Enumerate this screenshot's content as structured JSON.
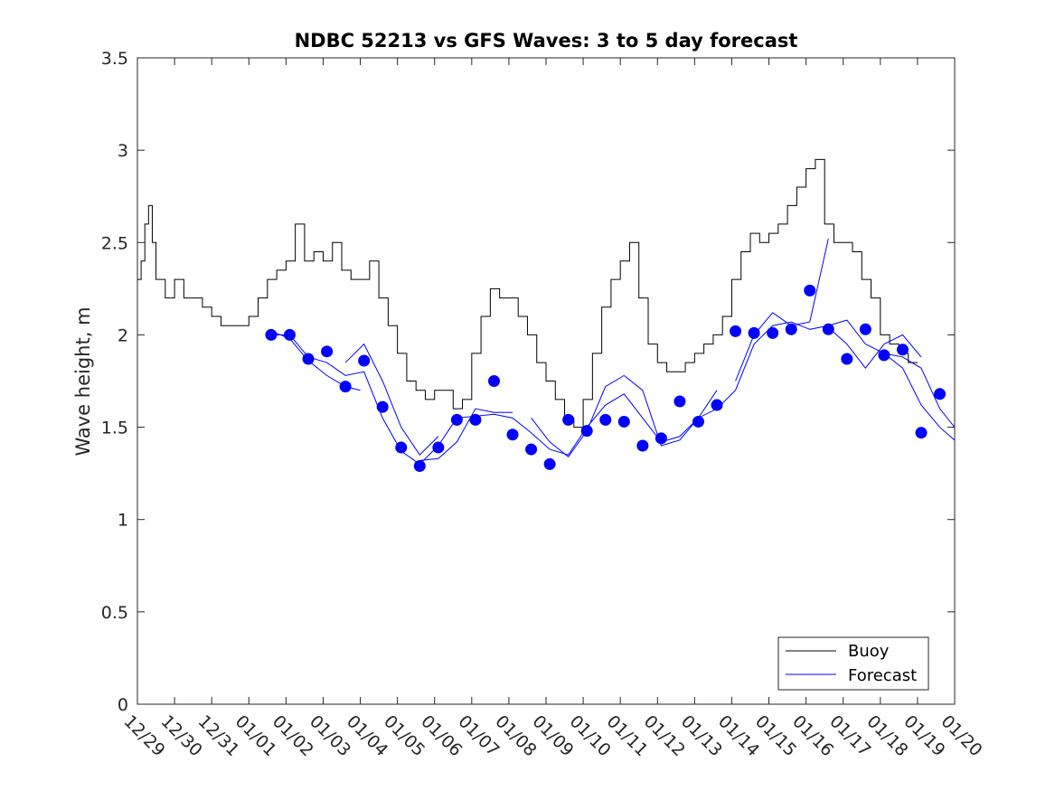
{
  "chart_data": {
    "type": "line",
    "title": "NDBC 52213 vs GFS Waves: 3 to 5 day forecast",
    "xlabel": "",
    "ylabel": "Wave height, m",
    "ylim": [
      0,
      3.5
    ],
    "yticks": [
      0,
      0.5,
      1,
      1.5,
      2,
      2.5,
      3,
      3.5
    ],
    "ytick_labels": [
      "0",
      "0.5",
      "1",
      "1.5",
      "2",
      "2.5",
      "3",
      "3.5"
    ],
    "xlim_days": [
      0,
      22
    ],
    "xtick_labels": [
      "12/29",
      "12/30",
      "12/31",
      "01/01",
      "01/02",
      "01/03",
      "01/04",
      "01/05",
      "01/06",
      "01/07",
      "01/08",
      "01/09",
      "01/10",
      "01/11",
      "01/12",
      "01/13",
      "01/14",
      "01/15",
      "01/16",
      "01/17",
      "01/18",
      "01/19",
      "01/20"
    ],
    "legend": {
      "position": "bottom-right",
      "entries": [
        "Buoy",
        "Forecast"
      ]
    },
    "colors": {
      "buoy": "#000000",
      "forecast": "#0000ff",
      "markers": "#0000ff"
    },
    "series": [
      {
        "name": "Buoy",
        "x": [
          0,
          0.1,
          0.2,
          0.3,
          0.4,
          0.5,
          0.75,
          1.0,
          1.25,
          1.5,
          1.75,
          2.0,
          2.25,
          2.5,
          3.0,
          3.25,
          3.5,
          3.75,
          4.0,
          4.25,
          4.5,
          4.75,
          5.0,
          5.25,
          5.5,
          5.75,
          6.0,
          6.25,
          6.5,
          6.75,
          7.0,
          7.25,
          7.5,
          7.75,
          8.0,
          8.25,
          8.5,
          8.75,
          9.0,
          9.25,
          9.5,
          9.75,
          10.0,
          10.25,
          10.5,
          10.75,
          11.0,
          11.25,
          11.5,
          11.75,
          12.0,
          12.25,
          12.5,
          12.75,
          13.0,
          13.25,
          13.5,
          13.75,
          14.0,
          14.25,
          14.5,
          14.75,
          15.0,
          15.25,
          15.5,
          15.75,
          16.0,
          16.25,
          16.5,
          16.75,
          17.0,
          17.25,
          17.5,
          17.75,
          18.0,
          18.25,
          18.5,
          18.75,
          19.0,
          19.25,
          19.5,
          19.75,
          20.0,
          20.25,
          20.5,
          20.75,
          21.0
        ],
        "values": [
          2.3,
          2.4,
          2.6,
          2.7,
          2.5,
          2.3,
          2.2,
          2.3,
          2.2,
          2.2,
          2.15,
          2.1,
          2.05,
          2.05,
          2.1,
          2.2,
          2.3,
          2.35,
          2.4,
          2.6,
          2.4,
          2.45,
          2.4,
          2.5,
          2.35,
          2.3,
          2.3,
          2.4,
          2.2,
          2.05,
          1.9,
          1.75,
          1.7,
          1.65,
          1.7,
          1.7,
          1.6,
          1.65,
          1.9,
          2.1,
          2.25,
          2.2,
          2.2,
          2.1,
          2.0,
          1.85,
          1.75,
          1.65,
          1.55,
          1.5,
          1.65,
          1.9,
          2.15,
          2.3,
          2.4,
          2.5,
          2.2,
          1.95,
          1.85,
          1.8,
          1.8,
          1.85,
          1.9,
          1.95,
          2.0,
          2.1,
          2.3,
          2.45,
          2.55,
          2.5,
          2.55,
          2.6,
          2.7,
          2.8,
          2.9,
          2.95,
          2.6,
          2.5,
          2.5,
          2.45,
          2.3,
          2.2,
          2.0,
          1.95,
          1.9,
          1.85,
          1.85
        ]
      },
      {
        "name": "Forecast",
        "x": [
          3.6,
          4.1,
          4.6,
          5.1,
          5.6,
          6.1,
          6.6,
          7.1,
          7.6,
          8.1,
          8.6,
          9.1,
          9.6,
          10.1,
          10.6,
          11.1,
          11.6,
          12.1,
          12.6,
          13.1,
          13.6,
          14.1,
          14.6,
          15.1,
          15.6,
          16.1,
          16.6,
          17.1,
          17.6,
          18.1,
          18.6,
          19.1,
          19.6,
          20.1,
          20.6,
          21.1,
          21.6,
          22.0
        ],
        "values": [
          2.0,
          2.0,
          1.88,
          1.85,
          1.78,
          1.8,
          1.55,
          1.37,
          1.3,
          1.4,
          1.55,
          1.56,
          1.57,
          1.55,
          1.47,
          1.38,
          1.35,
          1.5,
          1.62,
          1.68,
          1.55,
          1.42,
          1.45,
          1.55,
          1.6,
          1.7,
          1.95,
          2.05,
          2.07,
          2.03,
          2.05,
          2.08,
          1.95,
          1.9,
          1.88,
          1.82,
          1.6,
          1.5
        ]
      }
    ],
    "forecast_extra_lines": [
      {
        "x": [
          3.6,
          4.1,
          4.6,
          5.1,
          5.6,
          6.0
        ],
        "values": [
          2.02,
          1.98,
          1.86,
          1.78,
          1.72,
          1.7
        ]
      },
      {
        "x": [
          5.6,
          6.1,
          6.6,
          7.1,
          7.6,
          8.1
        ],
        "values": [
          1.85,
          1.95,
          1.75,
          1.5,
          1.35,
          1.45
        ]
      },
      {
        "x": [
          7.6,
          8.1,
          8.6,
          9.1,
          9.6,
          10.1
        ],
        "values": [
          1.32,
          1.33,
          1.42,
          1.6,
          1.58,
          1.58
        ]
      },
      {
        "x": [
          10.6,
          11.1,
          11.6,
          12.1,
          12.6,
          13.1
        ],
        "values": [
          1.55,
          1.42,
          1.34,
          1.48,
          1.72,
          1.78
        ]
      },
      {
        "x": [
          13.1,
          13.6,
          14.1,
          14.6,
          15.1,
          15.6
        ],
        "values": [
          1.78,
          1.7,
          1.4,
          1.43,
          1.55,
          1.7
        ]
      },
      {
        "x": [
          16.1,
          16.6,
          17.1,
          17.6,
          18.1,
          18.6
        ],
        "values": [
          1.75,
          2.0,
          2.12,
          2.05,
          2.07,
          2.52
        ]
      },
      {
        "x": [
          18.6,
          19.1,
          19.6,
          20.1,
          20.6,
          21.1
        ],
        "values": [
          2.04,
          1.95,
          1.82,
          1.95,
          2.0,
          1.88
        ]
      },
      {
        "x": [
          20.1,
          20.6,
          21.1,
          21.6,
          22.0
        ],
        "values": [
          1.9,
          1.82,
          1.62,
          1.5,
          1.43
        ]
      }
    ],
    "markers": {
      "name": "Forecast points",
      "x": [
        3.6,
        4.1,
        4.6,
        5.1,
        5.6,
        6.1,
        6.6,
        7.1,
        7.6,
        8.1,
        8.6,
        9.1,
        9.6,
        10.1,
        10.6,
        11.1,
        11.6,
        12.1,
        12.6,
        13.1,
        13.6,
        14.1,
        14.6,
        15.1,
        15.6,
        16.1,
        16.6,
        17.1,
        17.6,
        18.1,
        18.6,
        19.1,
        19.6,
        20.1,
        20.6,
        21.1,
        21.6
      ],
      "values": [
        2.0,
        2.0,
        1.87,
        1.91,
        1.72,
        1.86,
        1.61,
        1.39,
        1.29,
        1.39,
        1.54,
        1.54,
        1.75,
        1.46,
        1.38,
        1.3,
        1.54,
        1.48,
        1.54,
        1.53,
        1.4,
        1.44,
        1.64,
        1.53,
        1.62,
        2.02,
        2.01,
        2.01,
        2.03,
        2.24,
        2.03,
        1.87,
        2.03,
        1.89,
        1.92,
        1.47,
        1.68
      ]
    }
  }
}
